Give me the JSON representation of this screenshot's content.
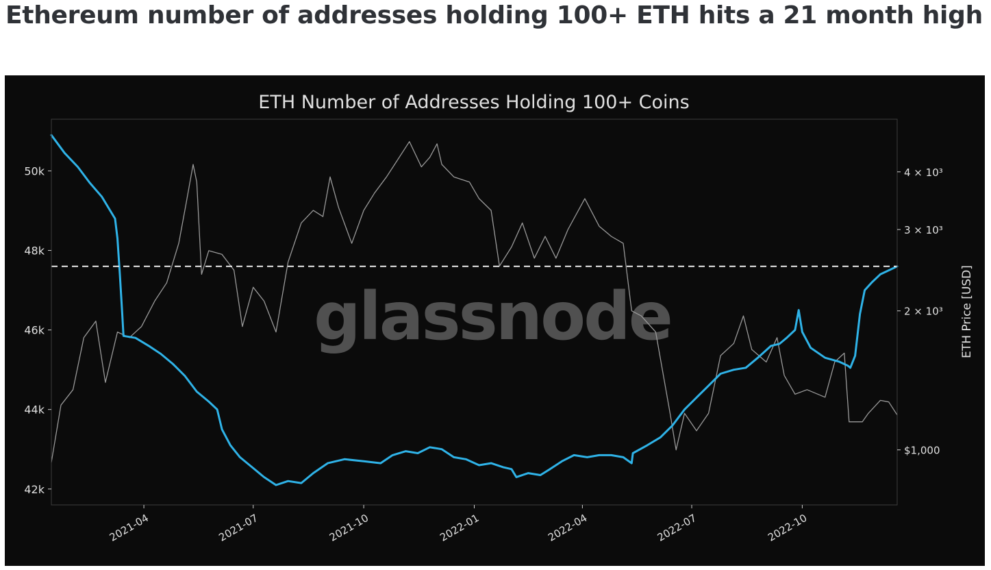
{
  "headline": "Ethereum number of addresses holding 100+ ETH hits a 21 month high",
  "watermark": "glassnode",
  "colors": {
    "background": "#0b0b0b",
    "addresses_line": "#2fb3e8",
    "price_line": "#9a9a9a",
    "reference_line": "#e8e8e8",
    "text": "#e0e0e0"
  },
  "chart_data": {
    "type": "line",
    "title": "ETH Number of Addresses Holding 100+ Coins",
    "xlabel": "",
    "ylabel_left": "",
    "ylabel_right": "ETH Price [USD]",
    "x_range": [
      "2021-01-14",
      "2022-12-19"
    ],
    "x_ticks": [
      "2021-04",
      "2021-07",
      "2021-10",
      "2022-01",
      "2022-04",
      "2022-07",
      "2022-10"
    ],
    "y_left": {
      "range": [
        41600,
        51300
      ],
      "ticks": [
        42000,
        44000,
        46000,
        48000,
        50000
      ],
      "tick_labels": [
        "42k",
        "44k",
        "46k",
        "48k",
        "50k"
      ]
    },
    "y_right": {
      "scale": "log",
      "range": [
        760,
        5200
      ],
      "ticks": [
        1000,
        2000,
        3000,
        4000
      ],
      "tick_labels": [
        "$1,000",
        "2 × 10³",
        "3 × 10³",
        "4 × 10³"
      ]
    },
    "grid": false,
    "reference_line": {
      "axis": "left",
      "value": 47600,
      "style": "dashed"
    },
    "series": [
      {
        "axis": "left",
        "color": "#2fb3e8",
        "points": [
          [
            "2021-01-14",
            50900
          ],
          [
            "2021-01-25",
            50450
          ],
          [
            "2021-02-05",
            50100
          ],
          [
            "2021-02-15",
            49700
          ],
          [
            "2021-02-25",
            49350
          ],
          [
            "2021-03-03",
            49050
          ],
          [
            "2021-03-08",
            48800
          ],
          [
            "2021-03-10",
            48300
          ],
          [
            "2021-03-12",
            47400
          ],
          [
            "2021-03-14",
            46400
          ],
          [
            "2021-03-15",
            45850
          ],
          [
            "2021-03-25",
            45800
          ],
          [
            "2021-04-05",
            45600
          ],
          [
            "2021-04-15",
            45400
          ],
          [
            "2021-04-25",
            45150
          ],
          [
            "2021-05-05",
            44850
          ],
          [
            "2021-05-15",
            44450
          ],
          [
            "2021-05-25",
            44200
          ],
          [
            "2021-06-01",
            44000
          ],
          [
            "2021-06-05",
            43500
          ],
          [
            "2021-06-12",
            43100
          ],
          [
            "2021-06-20",
            42800
          ],
          [
            "2021-06-30",
            42550
          ],
          [
            "2021-07-10",
            42300
          ],
          [
            "2021-07-20",
            42100
          ],
          [
            "2021-07-30",
            42200
          ],
          [
            "2021-08-10",
            42150
          ],
          [
            "2021-08-20",
            42400
          ],
          [
            "2021-09-01",
            42650
          ],
          [
            "2021-09-15",
            42750
          ],
          [
            "2021-10-01",
            42700
          ],
          [
            "2021-10-15",
            42650
          ],
          [
            "2021-10-25",
            42850
          ],
          [
            "2021-11-05",
            42950
          ],
          [
            "2021-11-15",
            42900
          ],
          [
            "2021-11-25",
            43050
          ],
          [
            "2021-12-05",
            43000
          ],
          [
            "2021-12-15",
            42800
          ],
          [
            "2021-12-25",
            42750
          ],
          [
            "2022-01-05",
            42600
          ],
          [
            "2022-01-15",
            42650
          ],
          [
            "2022-01-25",
            42550
          ],
          [
            "2022-02-01",
            42500
          ],
          [
            "2022-02-05",
            42300
          ],
          [
            "2022-02-15",
            42400
          ],
          [
            "2022-02-25",
            42350
          ],
          [
            "2022-03-05",
            42500
          ],
          [
            "2022-03-15",
            42700
          ],
          [
            "2022-03-25",
            42850
          ],
          [
            "2022-04-05",
            42800
          ],
          [
            "2022-04-15",
            42850
          ],
          [
            "2022-04-25",
            42850
          ],
          [
            "2022-05-05",
            42800
          ],
          [
            "2022-05-12",
            42650
          ],
          [
            "2022-05-13",
            42900
          ],
          [
            "2022-05-25",
            43100
          ],
          [
            "2022-06-05",
            43300
          ],
          [
            "2022-06-15",
            43600
          ],
          [
            "2022-06-25",
            44000
          ],
          [
            "2022-07-05",
            44300
          ],
          [
            "2022-07-15",
            44600
          ],
          [
            "2022-07-25",
            44900
          ],
          [
            "2022-08-05",
            45000
          ],
          [
            "2022-08-15",
            45050
          ],
          [
            "2022-08-25",
            45300
          ],
          [
            "2022-09-05",
            45600
          ],
          [
            "2022-09-12",
            45650
          ],
          [
            "2022-09-18",
            45800
          ],
          [
            "2022-09-25",
            46000
          ],
          [
            "2022-09-28",
            46500
          ],
          [
            "2022-10-01",
            45950
          ],
          [
            "2022-10-08",
            45550
          ],
          [
            "2022-10-20",
            45300
          ],
          [
            "2022-11-01",
            45200
          ],
          [
            "2022-11-08",
            45100
          ],
          [
            "2022-11-10",
            45050
          ],
          [
            "2022-11-14",
            45350
          ],
          [
            "2022-11-18",
            46400
          ],
          [
            "2022-11-22",
            47000
          ],
          [
            "2022-11-28",
            47200
          ],
          [
            "2022-12-05",
            47400
          ],
          [
            "2022-12-12",
            47500
          ],
          [
            "2022-12-19",
            47600
          ]
        ]
      },
      {
        "axis": "right",
        "color": "#9a9a9a",
        "points": [
          [
            "2021-01-14",
            940
          ],
          [
            "2021-01-22",
            1250
          ],
          [
            "2021-02-01",
            1350
          ],
          [
            "2021-02-10",
            1750
          ],
          [
            "2021-02-20",
            1900
          ],
          [
            "2021-02-28",
            1400
          ],
          [
            "2021-03-10",
            1800
          ],
          [
            "2021-03-20",
            1750
          ],
          [
            "2021-03-30",
            1850
          ],
          [
            "2021-04-10",
            2100
          ],
          [
            "2021-04-20",
            2300
          ],
          [
            "2021-04-30",
            2800
          ],
          [
            "2021-05-06",
            3400
          ],
          [
            "2021-05-12",
            4150
          ],
          [
            "2021-05-15",
            3800
          ],
          [
            "2021-05-19",
            2400
          ],
          [
            "2021-05-25",
            2700
          ],
          [
            "2021-06-05",
            2650
          ],
          [
            "2021-06-15",
            2450
          ],
          [
            "2021-06-22",
            1850
          ],
          [
            "2021-07-01",
            2250
          ],
          [
            "2021-07-10",
            2100
          ],
          [
            "2021-07-20",
            1800
          ],
          [
            "2021-07-30",
            2550
          ],
          [
            "2021-08-10",
            3100
          ],
          [
            "2021-08-20",
            3300
          ],
          [
            "2021-08-28",
            3200
          ],
          [
            "2021-09-03",
            3900
          ],
          [
            "2021-09-10",
            3350
          ],
          [
            "2021-09-21",
            2800
          ],
          [
            "2021-10-01",
            3300
          ],
          [
            "2021-10-10",
            3600
          ],
          [
            "2021-10-20",
            3900
          ],
          [
            "2021-10-28",
            4200
          ],
          [
            "2021-11-08",
            4650
          ],
          [
            "2021-11-18",
            4100
          ],
          [
            "2021-11-25",
            4300
          ],
          [
            "2021-12-01",
            4600
          ],
          [
            "2021-12-05",
            4150
          ],
          [
            "2021-12-15",
            3900
          ],
          [
            "2021-12-28",
            3800
          ],
          [
            "2022-01-05",
            3500
          ],
          [
            "2022-01-15",
            3300
          ],
          [
            "2022-01-22",
            2500
          ],
          [
            "2022-02-01",
            2750
          ],
          [
            "2022-02-10",
            3100
          ],
          [
            "2022-02-20",
            2600
          ],
          [
            "2022-03-01",
            2900
          ],
          [
            "2022-03-10",
            2600
          ],
          [
            "2022-03-20",
            3000
          ],
          [
            "2022-04-03",
            3500
          ],
          [
            "2022-04-15",
            3050
          ],
          [
            "2022-04-25",
            2900
          ],
          [
            "2022-05-05",
            2800
          ],
          [
            "2022-05-12",
            2000
          ],
          [
            "2022-05-20",
            1950
          ],
          [
            "2022-06-01",
            1800
          ],
          [
            "2022-06-13",
            1200
          ],
          [
            "2022-06-18",
            1000
          ],
          [
            "2022-06-25",
            1200
          ],
          [
            "2022-07-05",
            1100
          ],
          [
            "2022-07-15",
            1200
          ],
          [
            "2022-07-25",
            1600
          ],
          [
            "2022-08-05",
            1700
          ],
          [
            "2022-08-13",
            1950
          ],
          [
            "2022-08-20",
            1650
          ],
          [
            "2022-09-01",
            1550
          ],
          [
            "2022-09-10",
            1750
          ],
          [
            "2022-09-16",
            1450
          ],
          [
            "2022-09-25",
            1320
          ],
          [
            "2022-10-05",
            1350
          ],
          [
            "2022-10-20",
            1300
          ],
          [
            "2022-10-28",
            1550
          ],
          [
            "2022-11-05",
            1620
          ],
          [
            "2022-11-09",
            1150
          ],
          [
            "2022-11-20",
            1150
          ],
          [
            "2022-11-25",
            1200
          ],
          [
            "2022-12-05",
            1280
          ],
          [
            "2022-12-12",
            1270
          ],
          [
            "2022-12-19",
            1190
          ]
        ]
      }
    ]
  }
}
